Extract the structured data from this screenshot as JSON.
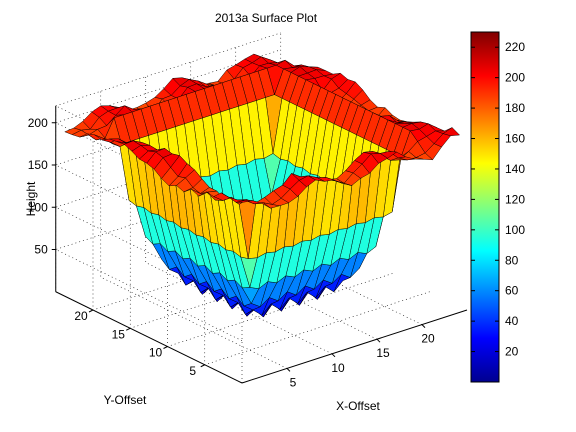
{
  "chart_data": {
    "type": "surface",
    "title": "2013a Surface Plot",
    "xlabel": "X-Offset",
    "ylabel": "Y-Offset",
    "zlabel": "Height",
    "xlim": [
      1,
      25
    ],
    "ylim": [
      1,
      25
    ],
    "zlim": [
      0,
      220
    ],
    "x_ticks": [
      5,
      10,
      15,
      20
    ],
    "y_ticks": [
      5,
      10,
      15,
      20
    ],
    "z_ticks": [
      50,
      100,
      150,
      200
    ],
    "colorbar": {
      "colormap": "jet",
      "range": [
        0,
        230
      ],
      "ticks": [
        20,
        40,
        60,
        80,
        100,
        120,
        140,
        160,
        180,
        200,
        220
      ]
    },
    "surface": {
      "grid_size": 25,
      "plateau_height": 200,
      "plateau_region_x": [
        3,
        23
      ],
      "plateau_region_y": [
        3,
        23
      ],
      "rim_height": 190,
      "pit_min": 0,
      "pit_max": 150
    },
    "grid": true,
    "legend": "none"
  },
  "colors": {
    "background": "#ffffff",
    "axis": "#000000",
    "edge": "#000000"
  }
}
